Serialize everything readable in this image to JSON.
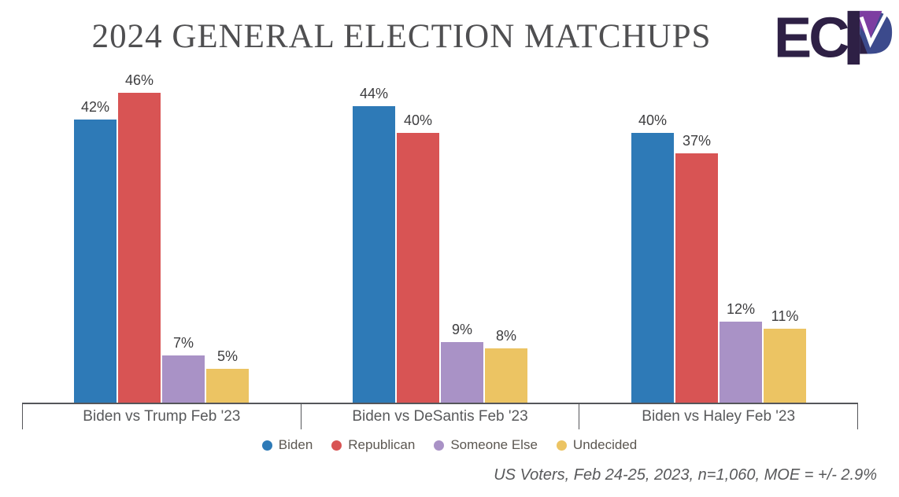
{
  "title": "2024 GENERAL ELECTION MATCHUPS",
  "logo": {
    "letters": "EC",
    "dark_purple": "#2e2045",
    "violet": "#7d3da1",
    "indigo": "#3c4a8c"
  },
  "chart_data": {
    "type": "bar",
    "title": "2024 General Election Matchups",
    "categories": [
      "Biden vs Trump Feb '23",
      "Biden vs DeSantis Feb '23",
      "Biden vs Haley Feb '23"
    ],
    "series": [
      {
        "name": "Biden",
        "color": "#2e7ab7",
        "values": [
          42,
          44,
          40
        ]
      },
      {
        "name": "Republican",
        "color": "#d85454",
        "values": [
          46,
          40,
          37
        ]
      },
      {
        "name": "Someone Else",
        "color": "#a992c6",
        "values": [
          7,
          9,
          12
        ]
      },
      {
        "name": "Undecided",
        "color": "#ecc463",
        "values": [
          5,
          8,
          11
        ]
      }
    ],
    "value_suffix": "%",
    "ylim": [
      0,
      46
    ],
    "grid": false,
    "legend_position": "bottom",
    "data_labels": true
  },
  "footer": "US Voters, Feb 24-25, 2023, n=1,060, MOE = +/- 2.9%"
}
